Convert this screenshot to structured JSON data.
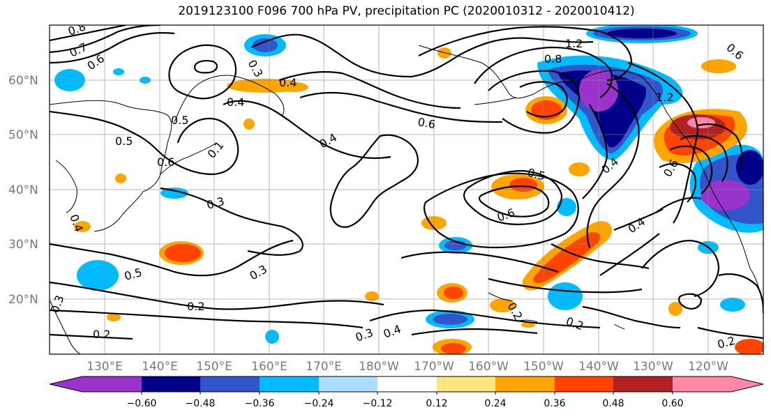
{
  "title": "2019123100 F096 700 hPa PV, precipitation PC (2020010312 - 2020010412)",
  "map": {
    "lat_labels": [
      "60°N",
      "50°N",
      "40°N",
      "30°N",
      "20°N"
    ],
    "lon_labels": [
      "130°E",
      "140°E",
      "150°E",
      "160°E",
      "170°E",
      "180°W",
      "170°W",
      "160°W",
      "150°W",
      "140°W",
      "130°W",
      "120°W"
    ],
    "contour_labels": [
      "0.8",
      "0.7",
      "0.6",
      "0.3",
      "0.4",
      "0.4",
      "0.5",
      "0.5",
      "0.1",
      "0.6",
      "0.3",
      "0.4",
      "0.6",
      "0.4",
      "1.2",
      "0.8",
      "0.5",
      "0.6",
      "0.4",
      "0.5",
      "0.3",
      "0.2",
      "0.2",
      "0.3",
      "0.4",
      "0.2",
      "0.2",
      "0.2",
      "0.4",
      "0.3",
      "1.2",
      "0.6",
      "0.6"
    ]
  },
  "colorbar": {
    "colors": [
      "#9933cc",
      "#000088",
      "#3355cc",
      "#00bbff",
      "#aaddff",
      "#ffffff",
      "#ffe680",
      "#ffa500",
      "#ff4400",
      "#b22222",
      "#ff88aa"
    ],
    "tick_labels": [
      "−0.60",
      "−0.48",
      "−0.36",
      "−0.24",
      "−0.12",
      "0.12",
      "0.24",
      "0.36",
      "0.48",
      "0.60"
    ]
  }
}
